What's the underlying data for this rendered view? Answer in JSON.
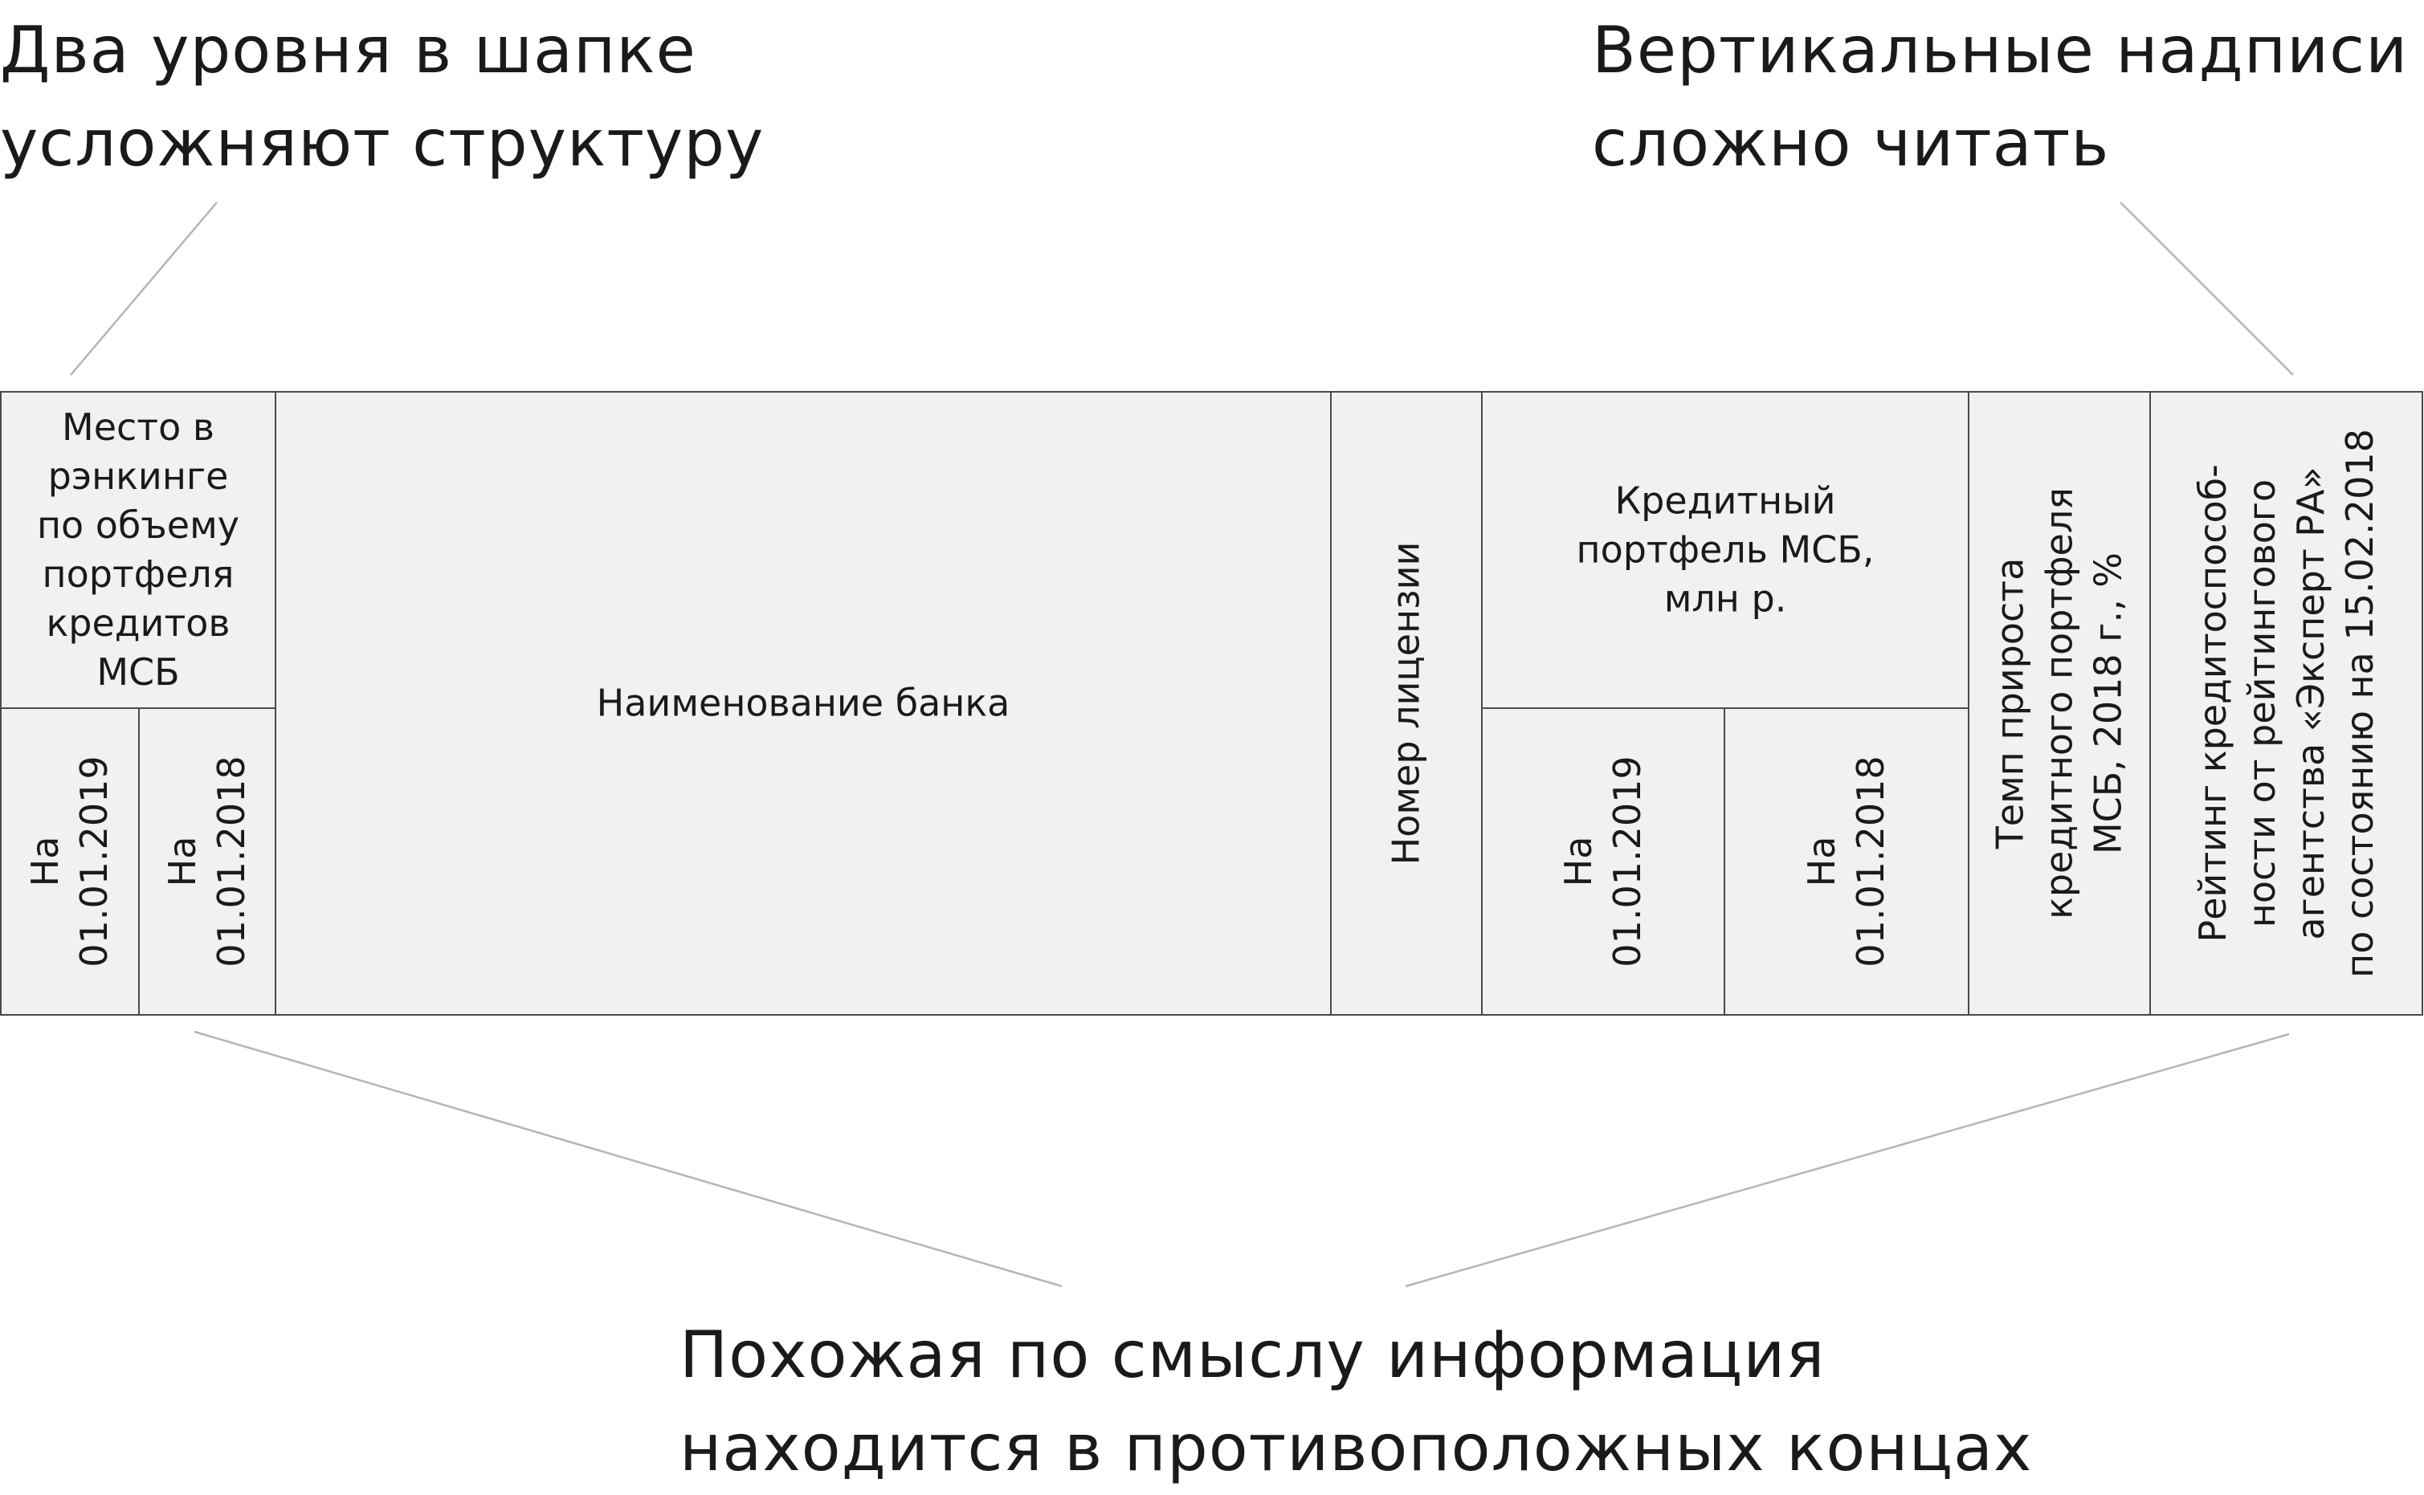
{
  "annotations": {
    "top_left": [
      "Два уровня в шапке",
      "усложняют структуру"
    ],
    "top_right": [
      "Вертикальные надписи",
      "сложно читать"
    ],
    "bottom": [
      "Похожая по смыслу информация",
      "находится в противоположных концах"
    ]
  },
  "table": {
    "rank_header": [
      "Место в",
      "рэнкинге",
      "по объему",
      "портфеля",
      "кредитов",
      "МСБ"
    ],
    "rank_2019": [
      "На",
      "01.01.2019"
    ],
    "rank_2018": [
      "На",
      "01.01.2018"
    ],
    "bank_name": "Наименование банка",
    "license": "Номер лицензии",
    "portfolio_header": [
      "Кредитный",
      "портфель МСБ,",
      "млн р."
    ],
    "portfolio_2019": [
      "На",
      "01.01.2019"
    ],
    "portfolio_2018": [
      "На",
      "01.01.2018"
    ],
    "growth": [
      "Темп прироста",
      "кредитного портфеля",
      "МСБ, 2018 г., %"
    ],
    "rating": [
      "Рейтинг кредитоспособ-",
      "ности от рейтингового",
      "агентства «Эксперт РА»",
      "по состоянию на 15.02.2018"
    ]
  },
  "colors": {
    "header_bg": "#f1f1f1",
    "border": "#4a4a4a",
    "connector": "#b5b5b5",
    "text": "#1a1a1a"
  }
}
